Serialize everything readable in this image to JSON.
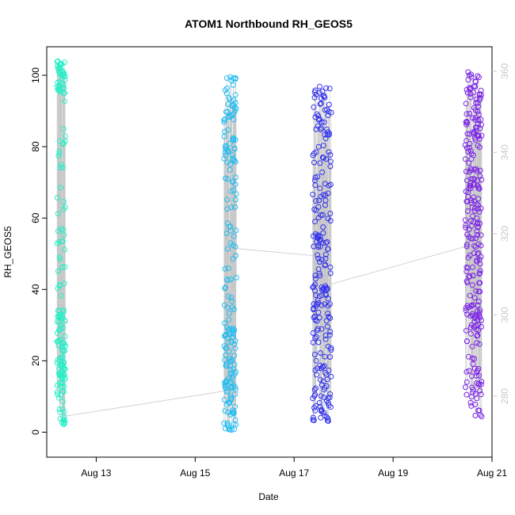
{
  "chart_data": {
    "type": "scatter",
    "title": "ATOM1 Northbound RH_GEOS5",
    "xlabel": "Date",
    "ylabel": "RH_GEOS5",
    "xlim": [
      "2016-08-12 00:00",
      "2016-08-21 00:00"
    ],
    "ylim": [
      -7,
      108
    ],
    "x_ticks": [
      {
        "value": "2016-08-13",
        "label": "Aug 13"
      },
      {
        "value": "2016-08-15",
        "label": "Aug 15"
      },
      {
        "value": "2016-08-17",
        "label": "Aug 17"
      },
      {
        "value": "2016-08-19",
        "label": "Aug 19"
      },
      {
        "value": "2016-08-21",
        "label": "Aug 21"
      }
    ],
    "y_ticks": [
      0,
      20,
      40,
      60,
      80,
      100
    ],
    "y2_ticks": [
      280,
      300,
      320,
      340,
      360
    ],
    "y2lim": [
      265,
      366
    ],
    "grid": false,
    "legend": "none",
    "trace_color": "#c8c8c8",
    "series": [
      {
        "color": "#22f0c8",
        "x_range": [
          "2016-08-12 05:00",
          "2016-08-12 09:00"
        ],
        "clusters": [
          {
            "lo": 95,
            "hi": 104,
            "weight": 0.22
          },
          {
            "lo": 2,
            "hi": 35,
            "weight": 0.5
          },
          {
            "lo": 35,
            "hi": 95,
            "weight": 0.28
          }
        ],
        "point_count": 170
      },
      {
        "color": "#22bdf0",
        "x_range": [
          "2016-08-15 14:00",
          "2016-08-15 20:00"
        ],
        "clusters": [
          {
            "lo": 75,
            "hi": 100,
            "weight": 0.35
          },
          {
            "lo": 0,
            "hi": 30,
            "weight": 0.4
          },
          {
            "lo": 30,
            "hi": 75,
            "weight": 0.25
          }
        ],
        "point_count": 200
      },
      {
        "color": "#2f2ff0",
        "x_range": [
          "2016-08-17 09:00",
          "2016-08-17 18:00"
        ],
        "clusters": [
          {
            "lo": 60,
            "hi": 97,
            "weight": 0.35
          },
          {
            "lo": 3,
            "hi": 30,
            "weight": 0.35
          },
          {
            "lo": 30,
            "hi": 60,
            "weight": 0.3
          }
        ],
        "point_count": 230
      },
      {
        "color": "#7a22e8",
        "x_range": [
          "2016-08-20 11:00",
          "2016-08-20 19:00"
        ],
        "clusters": [
          {
            "lo": 65,
            "hi": 101,
            "weight": 0.45
          },
          {
            "lo": 4,
            "hi": 30,
            "weight": 0.2
          },
          {
            "lo": 30,
            "hi": 65,
            "weight": 0.35
          }
        ],
        "point_count": 260
      }
    ],
    "connector_points": [
      {
        "x": "2016-08-12 09:00",
        "y": 4.5
      },
      {
        "x": "2016-08-15 14:00",
        "y": 11.5
      },
      {
        "x": "2016-08-15 19:00",
        "y": 51.5
      },
      {
        "x": "2016-08-17 09:00",
        "y": 49.5
      },
      {
        "x": "2016-08-17 18:00",
        "y": 41.5
      },
      {
        "x": "2016-08-20 11:00",
        "y": 52
      }
    ]
  }
}
